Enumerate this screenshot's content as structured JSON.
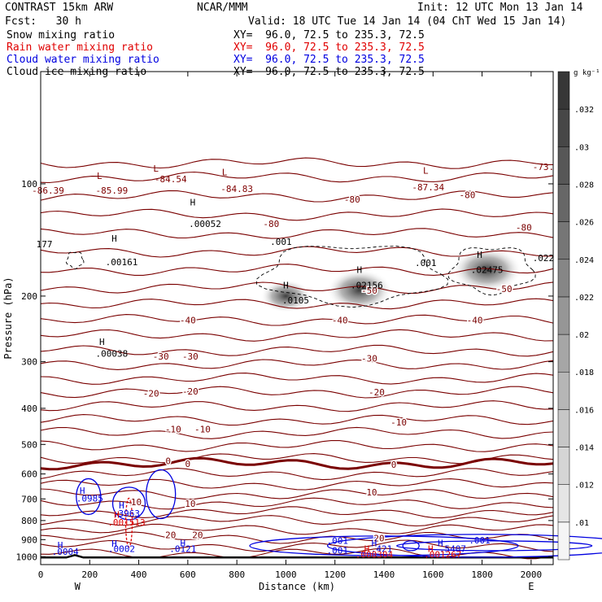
{
  "header": {
    "title_left": "CONTRAST 15km ARW",
    "title_center": "NCAR/MMM",
    "init": "Init: 12 UTC Mon 13 Jan 14",
    "fcst": "Fcst:   30 h",
    "valid": "Valid: 18 UTC Tue 14 Jan 14 (04 ChT Wed 15 Jan 14)",
    "fields": [
      {
        "name": "Snow mixing ratio",
        "xy": "XY=  96.0, 72.5 to 235.3, 72.5",
        "color": "#000000"
      },
      {
        "name": "Rain water mixing ratio",
        "xy": "XY=  96.0, 72.5 to 235.3, 72.5",
        "color": "#e00000"
      },
      {
        "name": "Cloud water mixing ratio",
        "xy": "XY=  96.0, 72.5 to 235.3, 72.5",
        "color": "#0000e0"
      },
      {
        "name": "Cloud ice mixing ratio",
        "xy": "XY=  96.0, 72.5 to 235.3, 72.5",
        "color": "#000000"
      }
    ]
  },
  "chart_data": {
    "type": "cross-section contour",
    "xlabel": "Distance (km)",
    "ylabel": "Pressure (hPa)",
    "x_ticks": [
      0,
      200,
      400,
      600,
      800,
      1000,
      1200,
      1400,
      1600,
      1800,
      2000
    ],
    "y_ticks": [
      100,
      200,
      300,
      400,
      500,
      600,
      700,
      800,
      900,
      1000
    ],
    "xlim": [
      0,
      2090
    ],
    "ylim": [
      1050,
      50
    ],
    "y_scale": "log",
    "end_labels": {
      "left": "W",
      "right": "E"
    },
    "colorbar": {
      "unit": "g kg⁻¹",
      "ticks": [
        ".01",
        ".012",
        ".014",
        ".016",
        ".018",
        ".02",
        ".022",
        ".024",
        ".026",
        ".028",
        ".03",
        ".032"
      ]
    },
    "temperature_contours": [
      {
        "value": -80,
        "labels": [
          {
            "text": "-80",
            "x": 1270,
            "p": 110
          },
          {
            "text": "-80",
            "x": 1740,
            "p": 107
          },
          {
            "text": "-80",
            "x": 940,
            "p": 128
          },
          {
            "text": "-80",
            "x": 1970,
            "p": 131
          }
        ]
      },
      {
        "value": -50,
        "labels": [
          {
            "text": "-50",
            "x": 1340,
            "p": 193
          },
          {
            "text": "-50",
            "x": 1890,
            "p": 191
          }
        ]
      },
      {
        "value": -40,
        "labels": [
          {
            "text": "-40",
            "x": 600,
            "p": 232
          },
          {
            "text": "-40",
            "x": 1220,
            "p": 232
          },
          {
            "text": "-40",
            "x": 1770,
            "p": 232
          }
        ]
      },
      {
        "value": -30,
        "labels": [
          {
            "text": "-30",
            "x": 490,
            "p": 290
          },
          {
            "text": "-30",
            "x": 610,
            "p": 290
          },
          {
            "text": "-30",
            "x": 1340,
            "p": 294
          }
        ]
      },
      {
        "value": -20,
        "labels": [
          {
            "text": "-20",
            "x": 450,
            "p": 365
          },
          {
            "text": "-20",
            "x": 610,
            "p": 360
          },
          {
            "text": "-20",
            "x": 1370,
            "p": 362
          }
        ]
      },
      {
        "value": -10,
        "labels": [
          {
            "text": "-10",
            "x": 540,
            "p": 455
          },
          {
            "text": "-10",
            "x": 660,
            "p": 455
          },
          {
            "text": "-10",
            "x": 1460,
            "p": 436
          }
        ]
      },
      {
        "value": 0,
        "labels": [
          {
            "text": "0",
            "x": 520,
            "p": 554
          },
          {
            "text": "0",
            "x": 600,
            "p": 563
          },
          {
            "text": "0",
            "x": 1440,
            "p": 566
          }
        ]
      },
      {
        "value": 10,
        "labels": [
          {
            "text": "10",
            "x": 390,
            "p": 713
          },
          {
            "text": "10",
            "x": 610,
            "p": 721
          },
          {
            "text": "10",
            "x": 1350,
            "p": 672
          }
        ]
      },
      {
        "value": 20,
        "labels": [
          {
            "text": "20",
            "x": 530,
            "p": 875
          },
          {
            "text": "20",
            "x": 640,
            "p": 875
          },
          {
            "text": "20",
            "x": 1380,
            "p": 892
          }
        ]
      }
    ],
    "extrema_labels": [
      {
        "text": "L",
        "x": 240,
        "p": 95,
        "color": "#800000"
      },
      {
        "text": "L",
        "x": 470,
        "p": 91,
        "color": "#800000"
      },
      {
        "text": "L",
        "x": 750,
        "p": 93,
        "color": "#800000"
      },
      {
        "text": "L",
        "x": 1570,
        "p": 92,
        "color": "#800000"
      },
      {
        "text": "-86.39",
        "x": 30,
        "p": 104,
        "color": "#800000"
      },
      {
        "text": "-85.99",
        "x": 290,
        "p": 104,
        "color": "#800000"
      },
      {
        "text": "-84.54",
        "x": 530,
        "p": 97,
        "color": "#800000"
      },
      {
        "text": "-84.83",
        "x": 800,
        "p": 103,
        "color": "#800000"
      },
      {
        "text": "-87.34",
        "x": 1580,
        "p": 102,
        "color": "#800000"
      },
      {
        "text": "-73.",
        "x": 2050,
        "p": 90,
        "color": "#800000"
      },
      {
        "text": "177",
        "x": 15,
        "p": 145,
        "color": "#000000"
      },
      {
        "text": "H",
        "x": 300,
        "p": 140,
        "color": "#000000"
      },
      {
        "text": ".00161",
        "x": 330,
        "p": 162,
        "color": "#000000"
      },
      {
        "text": "H",
        "x": 620,
        "p": 112,
        "color": "#000000"
      },
      {
        "text": ".00052",
        "x": 670,
        "p": 128,
        "color": "#000000"
      },
      {
        "text": ".001",
        "x": 980,
        "p": 143,
        "color": "#000000"
      },
      {
        "text": ".001",
        "x": 1570,
        "p": 163,
        "color": "#000000"
      },
      {
        "text": ".022",
        "x": 2050,
        "p": 158,
        "color": "#000000"
      },
      {
        "text": "H",
        "x": 1000,
        "p": 187,
        "color": "#000000"
      },
      {
        "text": ".0105",
        "x": 1040,
        "p": 205,
        "color": "#000000"
      },
      {
        "text": "H",
        "x": 1300,
        "p": 170,
        "color": "#000000"
      },
      {
        "text": ".02156",
        "x": 1330,
        "p": 187,
        "color": "#000000"
      },
      {
        "text": "H",
        "x": 1790,
        "p": 155,
        "color": "#000000"
      },
      {
        "text": ".02475",
        "x": 1820,
        "p": 170,
        "color": "#000000"
      },
      {
        "text": "H",
        "x": 250,
        "p": 265,
        "color": "#000000"
      },
      {
        "text": ".00038",
        "x": 290,
        "p": 285,
        "color": "#000000"
      },
      {
        "text": "H",
        "x": 170,
        "p": 665,
        "color": "#0000e0"
      },
      {
        "text": ".0985",
        "x": 200,
        "p": 698,
        "color": "#0000e0"
      },
      {
        "text": "H",
        "x": 330,
        "p": 728,
        "color": "#0000e0"
      },
      {
        "text": ".3963",
        "x": 350,
        "p": 765,
        "color": "#0000e0"
      },
      {
        "text": "H",
        "x": 310,
        "p": 770,
        "color": "#e00000"
      },
      {
        "text": ".001513",
        "x": 350,
        "p": 808,
        "color": "#e00000"
      },
      {
        "text": "H",
        "x": 80,
        "p": 931,
        "color": "#0000e0"
      },
      {
        "text": ".0004",
        "x": 100,
        "p": 968,
        "color": "#0000e0"
      },
      {
        "text": "H",
        "x": 300,
        "p": 922,
        "color": "#0000e0"
      },
      {
        "text": ".0002",
        "x": 330,
        "p": 953,
        "color": "#0000e0"
      },
      {
        "text": "H",
        "x": 580,
        "p": 918,
        "color": "#0000e0"
      },
      {
        "text": ".0121",
        "x": 580,
        "p": 953,
        "color": "#0000e0"
      },
      {
        "text": ".001",
        "x": 1210,
        "p": 905,
        "color": "#0000e0"
      },
      {
        "text": "H",
        "x": 1360,
        "p": 920,
        "color": "#0000e0"
      },
      {
        "text": ".421",
        "x": 1390,
        "p": 952,
        "color": "#0000e0"
      },
      {
        "text": ".001",
        "x": 1210,
        "p": 962,
        "color": "#0000e0"
      },
      {
        "text": "H",
        "x": 1330,
        "p": 952,
        "color": "#e00000"
      },
      {
        "text": ".000304",
        "x": 1360,
        "p": 985,
        "color": "#e00000"
      },
      {
        "text": "H",
        "x": 1630,
        "p": 920,
        "color": "#0000e0"
      },
      {
        "text": ".5407",
        "x": 1680,
        "p": 952,
        "color": "#0000e0"
      },
      {
        "text": ".001",
        "x": 1790,
        "p": 902,
        "color": "#0000e0"
      },
      {
        "text": "H",
        "x": 1590,
        "p": 952,
        "color": "#e00000"
      },
      {
        "text": ".001267",
        "x": 1640,
        "p": 985,
        "color": "#e00000"
      }
    ],
    "shaded_snow_maxima": [
      {
        "x": 1000,
        "p": 200,
        "value": 0.0105
      },
      {
        "x": 1300,
        "p": 193,
        "value": 0.02156
      },
      {
        "x": 1820,
        "p": 170,
        "value": 0.02475
      }
    ]
  }
}
